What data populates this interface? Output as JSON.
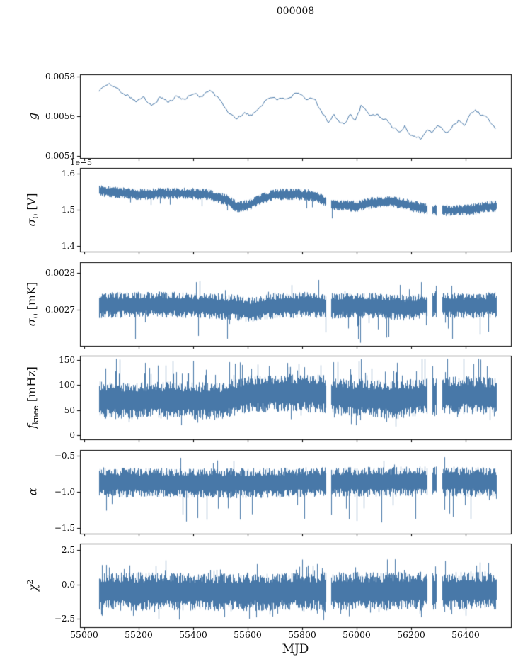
{
  "title": "000008",
  "xlabel": "MJD",
  "accent_color": "#4878a8",
  "chart_data": {
    "type": "line",
    "title": "000008",
    "xlabel": "MJD",
    "x_range": [
      54985,
      56565
    ],
    "x_data_range": [
      55055,
      56510
    ],
    "x_ticks": [
      55000,
      55200,
      55400,
      55600,
      55800,
      56000,
      56200,
      56400
    ],
    "x_tick_labels": [
      "55000",
      "55200",
      "55400",
      "55600",
      "55800",
      "56000",
      "56200",
      "56400"
    ],
    "gaps": [
      [
        55886,
        55906
      ],
      [
        56258,
        56276
      ],
      [
        56292,
        56312
      ]
    ],
    "panels": [
      {
        "name": "gain",
        "label": {
          "main": "g"
        },
        "ylim": [
          0.00539,
          0.00581
        ],
        "yticks": [
          0.0054,
          0.0056,
          0.0058
        ],
        "ytick_labels": [
          "0.0054",
          "0.0056",
          "0.0058"
        ],
        "style": "wander",
        "noise": 8e-06,
        "use_gaps": false,
        "keypoints": [
          [
            55055,
            0.00573
          ],
          [
            55075,
            0.00575
          ],
          [
            55100,
            0.00576
          ],
          [
            55130,
            0.00573
          ],
          [
            55160,
            0.00571
          ],
          [
            55190,
            0.00568
          ],
          [
            55220,
            0.00569
          ],
          [
            55250,
            0.00566
          ],
          [
            55280,
            0.0057
          ],
          [
            55310,
            0.00567
          ],
          [
            55340,
            0.0057
          ],
          [
            55370,
            0.00568
          ],
          [
            55400,
            0.00572
          ],
          [
            55430,
            0.0057
          ],
          [
            55460,
            0.00573
          ],
          [
            55490,
            0.00569
          ],
          [
            55515,
            0.00565
          ],
          [
            55540,
            0.0056
          ],
          [
            55565,
            0.00559
          ],
          [
            55590,
            0.00562
          ],
          [
            55615,
            0.0056
          ],
          [
            55640,
            0.00564
          ],
          [
            55665,
            0.00568
          ],
          [
            55695,
            0.0057
          ],
          [
            55725,
            0.00568
          ],
          [
            55755,
            0.0057
          ],
          [
            55785,
            0.00571
          ],
          [
            55815,
            0.00568
          ],
          [
            55845,
            0.00569
          ],
          [
            55870,
            0.00563
          ],
          [
            55895,
            0.00557
          ],
          [
            55915,
            0.00561
          ],
          [
            55935,
            0.00558
          ],
          [
            55955,
            0.00556
          ],
          [
            55975,
            0.00561
          ],
          [
            55995,
            0.00557
          ],
          [
            56015,
            0.00565
          ],
          [
            56035,
            0.00562
          ],
          [
            56055,
            0.0056
          ],
          [
            56075,
            0.00561
          ],
          [
            56095,
            0.00559
          ],
          [
            56115,
            0.00557
          ],
          [
            56135,
            0.00554
          ],
          [
            56155,
            0.00552
          ],
          [
            56175,
            0.00555
          ],
          [
            56195,
            0.00551
          ],
          [
            56215,
            0.0055
          ],
          [
            56235,
            0.00549
          ],
          [
            56255,
            0.00553
          ],
          [
            56275,
            0.00552
          ],
          [
            56295,
            0.00555
          ],
          [
            56315,
            0.00553
          ],
          [
            56335,
            0.00552
          ],
          [
            56355,
            0.00556
          ],
          [
            56375,
            0.00558
          ],
          [
            56395,
            0.00556
          ],
          [
            56415,
            0.00561
          ],
          [
            56435,
            0.00563
          ],
          [
            56455,
            0.00561
          ],
          [
            56475,
            0.00559
          ],
          [
            56495,
            0.00556
          ],
          [
            56510,
            0.00554
          ]
        ]
      },
      {
        "name": "sigma0-volts",
        "label": {
          "main": "σ",
          "sub": "0",
          "rest": " [V]"
        },
        "offset_text": "1e−5",
        "ylim": [
          1.385,
          1.615
        ],
        "yticks": [
          1.4,
          1.5,
          1.6
        ],
        "ytick_labels": [
          "1.4",
          "1.5",
          "1.6"
        ],
        "style": "band",
        "spread": 0.016,
        "use_gaps": true,
        "spike_down": [
          0.02,
          0.025
        ],
        "keypoints": [
          [
            55055,
            1.552
          ],
          [
            55120,
            1.548
          ],
          [
            55200,
            1.542
          ],
          [
            55300,
            1.545
          ],
          [
            55380,
            1.545
          ],
          [
            55450,
            1.542
          ],
          [
            55520,
            1.528
          ],
          [
            55560,
            1.508
          ],
          [
            55600,
            1.512
          ],
          [
            55650,
            1.53
          ],
          [
            55700,
            1.542
          ],
          [
            55780,
            1.543
          ],
          [
            55850,
            1.538
          ],
          [
            55900,
            1.515
          ],
          [
            55950,
            1.512
          ],
          [
            56000,
            1.51
          ],
          [
            56060,
            1.52
          ],
          [
            56120,
            1.523
          ],
          [
            56180,
            1.515
          ],
          [
            56230,
            1.505
          ],
          [
            56280,
            1.5
          ],
          [
            56350,
            1.498
          ],
          [
            56420,
            1.5
          ],
          [
            56470,
            1.508
          ],
          [
            56510,
            1.51
          ]
        ]
      },
      {
        "name": "sigma0-mK",
        "label": {
          "main": "σ",
          "sub": "0",
          "rest": " [mK]"
        },
        "ylim": [
          0.0026,
          0.00283
        ],
        "yticks": [
          0.0027,
          0.0028
        ],
        "ytick_labels": [
          "0.0027",
          "0.0028"
        ],
        "style": "band",
        "spread": 3.6e-05,
        "use_gaps": true,
        "spike_down": [
          0.03,
          7e-05
        ],
        "spike_up": [
          0.015,
          4e-05
        ],
        "keypoints": [
          [
            55055,
            0.002712
          ],
          [
            55250,
            0.002714
          ],
          [
            55400,
            0.002712
          ],
          [
            55560,
            0.002706
          ],
          [
            55620,
            0.002698
          ],
          [
            55680,
            0.00271
          ],
          [
            55800,
            0.002713
          ],
          [
            55900,
            0.00271
          ],
          [
            56000,
            0.002712
          ],
          [
            56100,
            0.002709
          ],
          [
            56180,
            0.002704
          ],
          [
            56250,
            0.00271
          ],
          [
            56510,
            0.002712
          ]
        ]
      },
      {
        "name": "f-knee",
        "label": {
          "main": "f",
          "sub": "knee",
          "rest": " [mHz]"
        },
        "ylim": [
          -8,
          158
        ],
        "yticks": [
          0,
          50,
          100,
          150
        ],
        "ytick_labels": [
          "0",
          "50",
          "100",
          "150"
        ],
        "style": "band",
        "spread": 38,
        "use_gaps": true,
        "spike_up": [
          0.12,
          50
        ],
        "spike_down": [
          0.05,
          25
        ],
        "clip": [
          14,
          152
        ],
        "keypoints": [
          [
            55055,
            70
          ],
          [
            55300,
            70
          ],
          [
            55500,
            68
          ],
          [
            55600,
            82
          ],
          [
            55750,
            85
          ],
          [
            55880,
            82
          ],
          [
            55950,
            75
          ],
          [
            56050,
            73
          ],
          [
            56150,
            70
          ],
          [
            56250,
            78
          ],
          [
            56400,
            80
          ],
          [
            56510,
            78
          ]
        ]
      },
      {
        "name": "alpha",
        "label": {
          "main": "α"
        },
        "ylim": [
          -1.58,
          -0.42
        ],
        "yticks": [
          -1.5,
          -1.0,
          -0.5
        ],
        "ytick_labels": [
          "−1.5",
          "−1.0",
          "−0.5"
        ],
        "style": "band",
        "spread": 0.21,
        "use_gaps": true,
        "spike_down": [
          0.04,
          0.4
        ],
        "spike_up": [
          0.02,
          0.18
        ],
        "clip": [
          -1.51,
          -0.52
        ],
        "keypoints": [
          [
            55055,
            -0.87
          ],
          [
            55600,
            -0.88
          ],
          [
            56000,
            -0.86
          ],
          [
            56510,
            -0.86
          ]
        ]
      },
      {
        "name": "chi-squared",
        "label": {
          "main": "χ",
          "sup": "2"
        },
        "ylim": [
          -3.1,
          2.95
        ],
        "yticks": [
          -2.5,
          0.0,
          2.5
        ],
        "ytick_labels": [
          "−2.5",
          "0.0",
          "2.5"
        ],
        "style": "band",
        "spread": 1.4,
        "use_gaps": true,
        "spike_up": [
          0.05,
          1.1
        ],
        "spike_down": [
          0.05,
          0.9
        ],
        "clip": [
          -2.95,
          2.5
        ],
        "keypoints": [
          [
            55055,
            -0.5
          ],
          [
            55500,
            -0.55
          ],
          [
            56000,
            -0.5
          ],
          [
            56510,
            -0.45
          ]
        ]
      }
    ]
  }
}
